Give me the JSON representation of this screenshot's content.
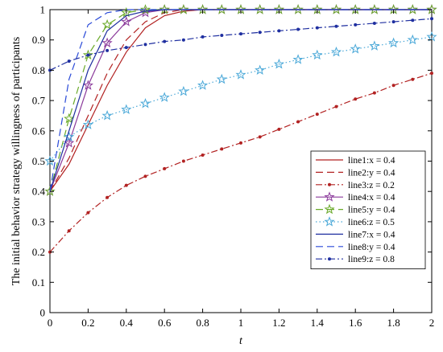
{
  "chart_data": {
    "type": "line",
    "xlabel": "t",
    "ylabel": "The initial behavior strategy willingness of participants",
    "xlim": [
      0,
      2
    ],
    "ylim": [
      0,
      1
    ],
    "x_ticks": [
      0,
      0.2,
      0.4,
      0.6,
      0.8,
      1,
      1.2,
      1.4,
      1.6,
      1.8,
      2
    ],
    "y_ticks": [
      0,
      0.1,
      0.2,
      0.3,
      0.4,
      0.5,
      0.6,
      0.7,
      0.8,
      0.9,
      1
    ],
    "x_tick_labels": [
      "0",
      "0.2",
      "0.4",
      "0.6",
      "0.8",
      "1",
      "1.2",
      "1.4",
      "1.6",
      "1.8",
      "2"
    ],
    "y_tick_labels": [
      "0",
      "0.1",
      "0.2",
      "0.3",
      "0.4",
      "0.5",
      "0.6",
      "0.7",
      "0.8",
      "0.9",
      "1"
    ],
    "grid": false,
    "legend_position": "lower-right",
    "x": [
      0,
      0.1,
      0.2,
      0.3,
      0.4,
      0.5,
      0.6,
      0.7,
      0.8,
      0.9,
      1.0,
      1.1,
      1.2,
      1.3,
      1.4,
      1.5,
      1.6,
      1.7,
      1.8,
      1.9,
      2.0
    ],
    "series": [
      {
        "name": "line1:x = 0.4",
        "color": "#b22222",
        "dash": "solid",
        "marker": "none",
        "values": [
          0.4,
          0.49,
          0.62,
          0.75,
          0.86,
          0.94,
          0.98,
          0.995,
          1,
          1,
          1,
          1,
          1,
          1,
          1,
          1,
          1,
          1,
          1,
          1,
          1
        ]
      },
      {
        "name": "line2:y = 0.4",
        "color": "#b22222",
        "dash": "dashed",
        "marker": "none",
        "values": [
          0.4,
          0.51,
          0.65,
          0.79,
          0.9,
          0.96,
          0.99,
          1,
          1,
          1,
          1,
          1,
          1,
          1,
          1,
          1,
          1,
          1,
          1,
          1,
          1
        ]
      },
      {
        "name": "line3:z = 0.2",
        "color": "#b22222",
        "dash": "dashdot",
        "marker": "dot",
        "values": [
          0.2,
          0.27,
          0.33,
          0.38,
          0.42,
          0.45,
          0.475,
          0.5,
          0.52,
          0.54,
          0.56,
          0.58,
          0.605,
          0.63,
          0.655,
          0.68,
          0.705,
          0.725,
          0.75,
          0.77,
          0.79
        ]
      },
      {
        "name": "line4:x = 0.4",
        "color": "#8b3a9b",
        "dash": "solid",
        "marker": "star",
        "values": [
          0.4,
          0.56,
          0.75,
          0.89,
          0.96,
          0.99,
          1,
          1,
          1,
          1,
          1,
          1,
          1,
          1,
          1,
          1,
          1,
          1,
          1,
          1,
          1
        ]
      },
      {
        "name": "line5:y = 0.4",
        "color": "#6aaa2a",
        "dash": "dashed",
        "marker": "star",
        "values": [
          0.4,
          0.64,
          0.85,
          0.95,
          0.99,
          1,
          1,
          1,
          1,
          1,
          1,
          1,
          1,
          1,
          1,
          1,
          1,
          1,
          1,
          1,
          1
        ]
      },
      {
        "name": "line6:z = 0.5",
        "color": "#4aa8d8",
        "dash": "dotted",
        "marker": "star",
        "values": [
          0.5,
          0.58,
          0.62,
          0.65,
          0.67,
          0.69,
          0.71,
          0.73,
          0.75,
          0.77,
          0.785,
          0.8,
          0.82,
          0.835,
          0.85,
          0.86,
          0.87,
          0.88,
          0.89,
          0.9,
          0.91
        ]
      },
      {
        "name": "line7:x = 0.4",
        "color": "#1f2fa0",
        "dash": "solid",
        "marker": "none",
        "values": [
          0.4,
          0.6,
          0.8,
          0.93,
          0.98,
          0.995,
          1,
          1,
          1,
          1,
          1,
          1,
          1,
          1,
          1,
          1,
          1,
          1,
          1,
          1,
          1
        ]
      },
      {
        "name": "line8:y = 0.4",
        "color": "#2a4ad8",
        "dash": "dashed",
        "marker": "none",
        "values": [
          0.4,
          0.77,
          0.95,
          0.99,
          1,
          1,
          1,
          1,
          1,
          1,
          1,
          1,
          1,
          1,
          1,
          1,
          1,
          1,
          1,
          1,
          1
        ]
      },
      {
        "name": "line9:z = 0.8",
        "color": "#1f2fa0",
        "dash": "dashdot",
        "marker": "dot",
        "values": [
          0.8,
          0.83,
          0.85,
          0.865,
          0.875,
          0.885,
          0.895,
          0.9,
          0.91,
          0.915,
          0.92,
          0.925,
          0.93,
          0.935,
          0.94,
          0.945,
          0.95,
          0.955,
          0.96,
          0.965,
          0.97
        ]
      }
    ]
  }
}
